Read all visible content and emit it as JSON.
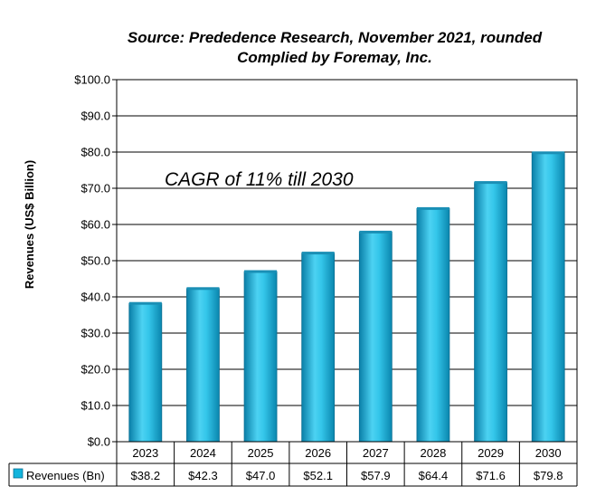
{
  "chart_data": {
    "type": "bar",
    "title": "Source: Prededence Research, November 2021, rounded",
    "subtitle": "Complied by Foremay, Inc.",
    "ylabel": "Revenues (US$ Billion)",
    "xlabel": "",
    "ylim": [
      0,
      100
    ],
    "yticks": [
      "$0.0",
      "$10.0",
      "$20.0",
      "$30.0",
      "$40.0",
      "$50.0",
      "$60.0",
      "$70.0",
      "$80.0",
      "$90.0",
      "$100.0"
    ],
    "ytick_values": [
      0,
      10,
      20,
      30,
      40,
      50,
      60,
      70,
      80,
      90,
      100
    ],
    "categories": [
      "2023",
      "2024",
      "2025",
      "2026",
      "2027",
      "2028",
      "2029",
      "2030"
    ],
    "series": [
      {
        "name": "Revenues (Bn)",
        "values": [
          38.2,
          42.3,
          47.0,
          52.1,
          57.9,
          64.4,
          71.6,
          79.8
        ],
        "value_labels": [
          "$38.2",
          "$42.3",
          "$47.0",
          "$52.1",
          "$57.9",
          "$64.4",
          "$71.6",
          "$79.8"
        ],
        "color": "#12B4DC"
      }
    ],
    "annotation": "CAGR of 11% till 2030",
    "grid": true,
    "legend": "data-table-left"
  }
}
